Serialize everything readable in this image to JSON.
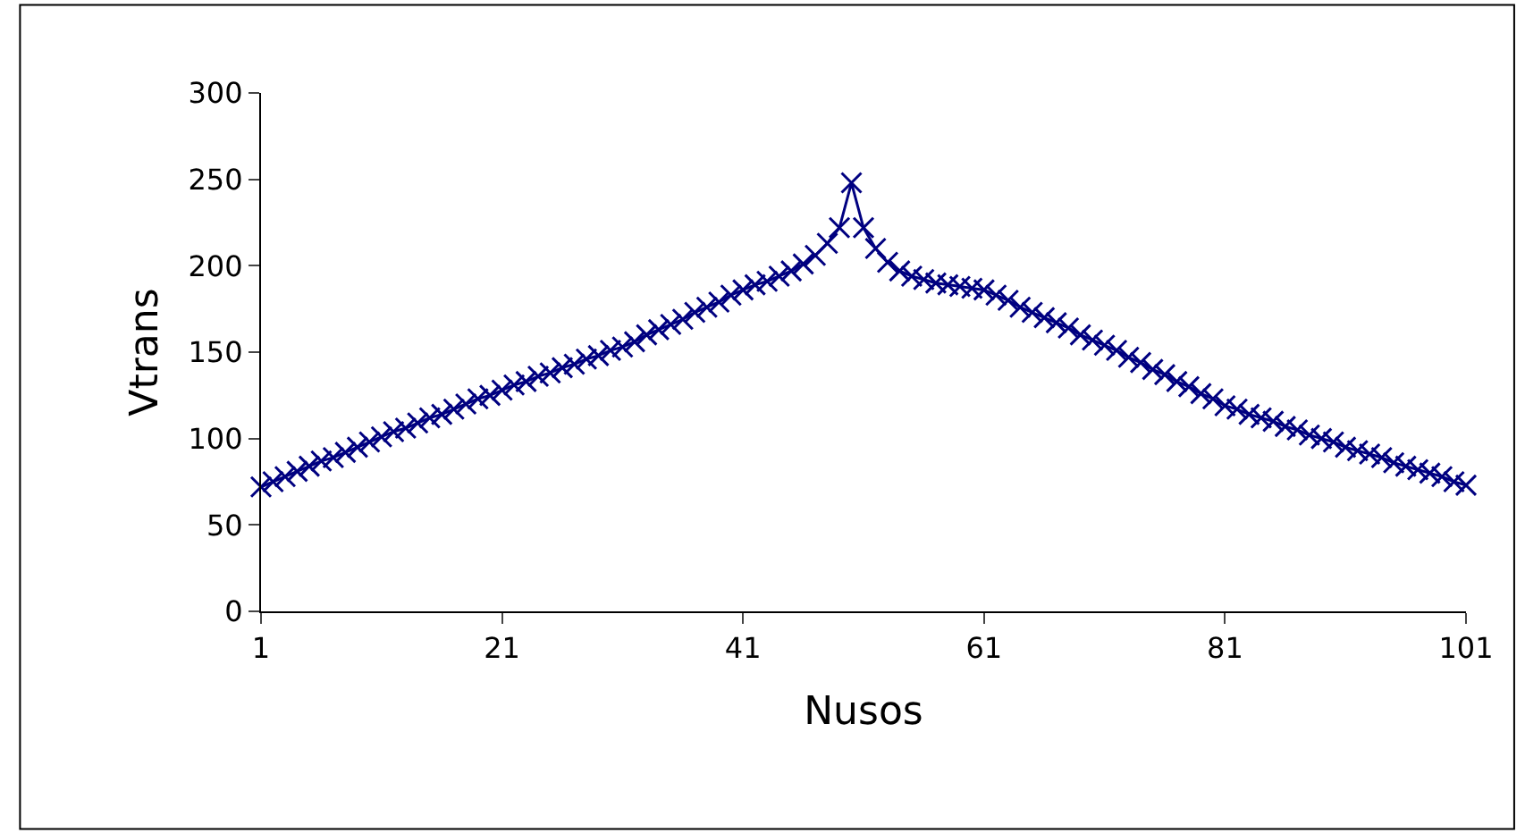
{
  "chart_data": {
    "type": "line",
    "xlabel": "Nusos",
    "ylabel": "Vtrans",
    "x": [
      1,
      2,
      3,
      4,
      5,
      6,
      7,
      8,
      9,
      10,
      11,
      12,
      13,
      14,
      15,
      16,
      17,
      18,
      19,
      20,
      21,
      22,
      23,
      24,
      25,
      26,
      27,
      28,
      29,
      30,
      31,
      32,
      33,
      34,
      35,
      36,
      37,
      38,
      39,
      40,
      41,
      42,
      43,
      44,
      45,
      46,
      47,
      48,
      49,
      50,
      51,
      52,
      53,
      54,
      55,
      56,
      57,
      58,
      59,
      60,
      61,
      62,
      63,
      64,
      65,
      66,
      67,
      68,
      69,
      70,
      71,
      72,
      73,
      74,
      75,
      76,
      77,
      78,
      79,
      80,
      81,
      82,
      83,
      84,
      85,
      86,
      87,
      88,
      89,
      90,
      91,
      92,
      93,
      94,
      95,
      96,
      97,
      98,
      99,
      100,
      101
    ],
    "series": [
      {
        "color": "#000080",
        "values": [
          72,
          75,
          78,
          81,
          84,
          87,
          89,
          92,
          95,
          98,
          101,
          104,
          106,
          109,
          112,
          114,
          117,
          120,
          123,
          125,
          128,
          131,
          133,
          136,
          138,
          141,
          143,
          146,
          148,
          151,
          153,
          156,
          160,
          163,
          166,
          169,
          173,
          176,
          179,
          183,
          186,
          189,
          191,
          194,
          197,
          201,
          206,
          213,
          222,
          248,
          222,
          210,
          202,
          197,
          194,
          192,
          190,
          189,
          188,
          187,
          186,
          183,
          180,
          176,
          173,
          170,
          167,
          164,
          160,
          157,
          154,
          151,
          147,
          144,
          140,
          137,
          133,
          130,
          126,
          123,
          119,
          117,
          114,
          112,
          110,
          107,
          105,
          102,
          100,
          98,
          95,
          93,
          91,
          89,
          86,
          84,
          82,
          80,
          78,
          75,
          73
        ]
      }
    ],
    "xlim": [
      1,
      101
    ],
    "xticks": [
      1,
      21,
      41,
      61,
      81,
      101
    ],
    "ylim": [
      0,
      300
    ],
    "yticks": [
      0,
      50,
      100,
      150,
      200,
      250,
      300
    ],
    "marker": "cross",
    "line_style": "solid",
    "grid": false
  }
}
